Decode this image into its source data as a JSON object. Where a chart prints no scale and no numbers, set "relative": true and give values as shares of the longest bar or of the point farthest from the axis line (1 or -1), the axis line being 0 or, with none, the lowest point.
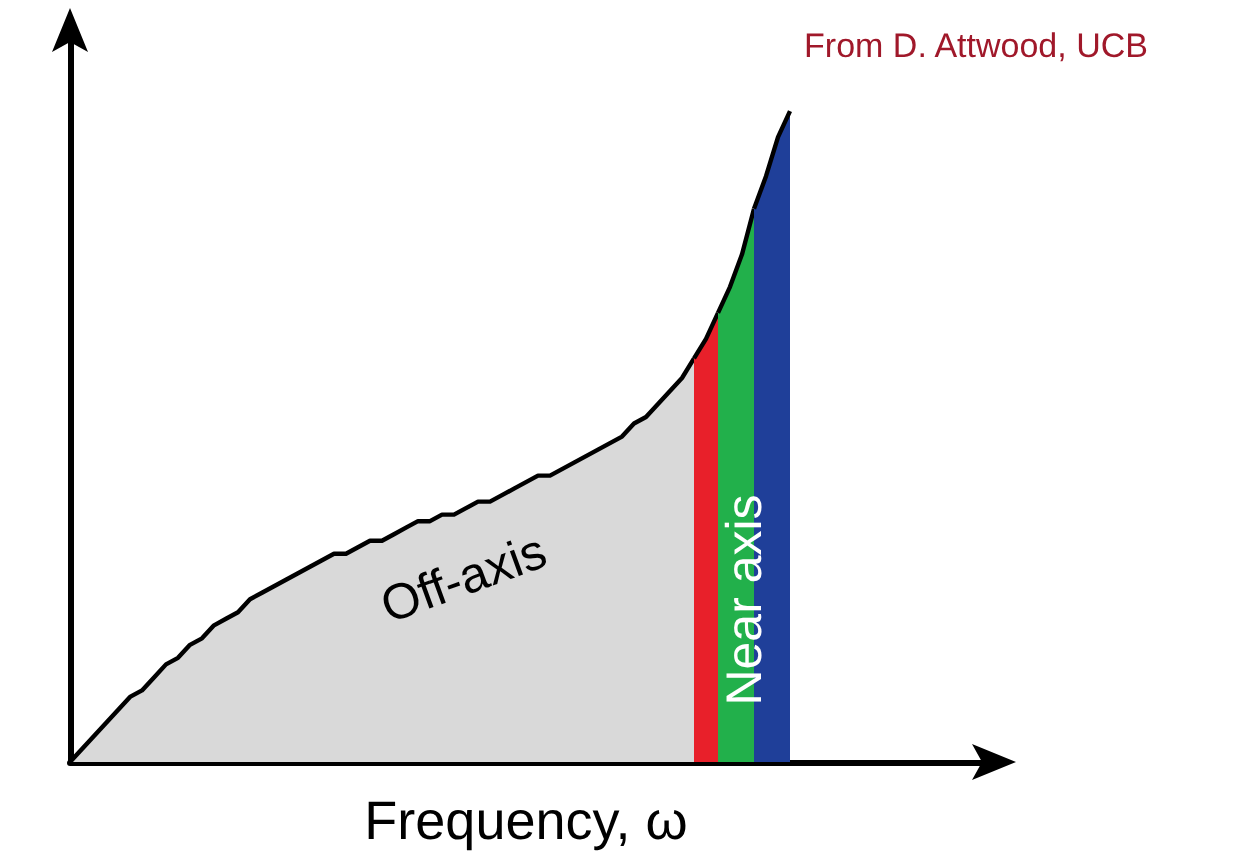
{
  "chart_data": {
    "type": "area",
    "relative": true,
    "xlabel": "Frequency, ω",
    "grid": false,
    "annotations": [
      "Off-axis",
      "Near axis",
      "From D. Attwood, UCB"
    ],
    "categories": [
      null,
      null,
      null,
      null,
      null,
      null,
      null,
      null,
      null,
      null,
      null,
      null,
      null,
      null,
      null,
      null,
      null,
      null,
      null,
      null,
      null,
      null,
      null,
      null,
      null,
      null,
      null,
      null,
      null,
      null,
      null,
      null,
      null,
      null,
      null,
      null,
      null,
      null,
      null,
      null,
      null,
      null,
      null,
      null,
      null,
      null,
      null,
      null,
      null,
      null,
      null,
      null,
      null,
      null,
      null,
      null,
      null,
      null,
      null,
      null,
      null,
      null,
      null,
      null,
      null,
      null,
      null,
      null,
      null,
      null,
      null,
      null,
      null,
      null,
      null,
      null,
      null
    ],
    "series": [
      {
        "color": "#d9d9d9",
        "values": [
          0,
          0.02,
          0.04,
          0.06,
          0.08,
          0.1,
          0.11,
          0.13,
          0.15,
          0.16,
          0.18,
          0.19,
          0.21,
          0.22,
          0.23,
          0.25,
          0.26,
          0.27,
          0.28,
          0.29,
          0.3,
          0.31,
          0.32,
          0.32,
          0.33,
          0.34,
          0.34,
          0.35,
          0.36,
          0.37,
          0.37,
          0.38,
          0.38,
          0.39,
          0.4,
          0.4,
          0.41,
          0.42,
          0.43,
          0.44,
          0.44,
          0.45,
          0.46,
          0.47,
          0.48,
          0.49,
          0.5,
          0.52,
          0.53,
          0.55,
          0.57,
          0.59,
          0.62,
          null,
          null,
          null,
          null,
          null,
          null,
          null,
          null,
          null,
          null,
          null,
          null,
          null,
          null,
          null,
          null,
          null,
          null,
          null,
          null,
          null,
          null,
          null,
          null
        ]
      },
      {
        "color": "#e8202a",
        "values": [
          null,
          null,
          null,
          null,
          null,
          null,
          null,
          null,
          null,
          null,
          null,
          null,
          null,
          null,
          null,
          null,
          null,
          null,
          null,
          null,
          null,
          null,
          null,
          null,
          null,
          null,
          null,
          null,
          null,
          null,
          null,
          null,
          null,
          null,
          null,
          null,
          null,
          null,
          null,
          null,
          null,
          null,
          null,
          null,
          null,
          null,
          null,
          null,
          null,
          null,
          null,
          null,
          0.62,
          0.65,
          0.69,
          null,
          null,
          null,
          null,
          null,
          null,
          null,
          null,
          null,
          null,
          null,
          null,
          null,
          null,
          null,
          null,
          null,
          null,
          null,
          null,
          null,
          null
        ]
      },
      {
        "color": "#22b04b",
        "values": [
          null,
          null,
          null,
          null,
          null,
          null,
          null,
          null,
          null,
          null,
          null,
          null,
          null,
          null,
          null,
          null,
          null,
          null,
          null,
          null,
          null,
          null,
          null,
          null,
          null,
          null,
          null,
          null,
          null,
          null,
          null,
          null,
          null,
          null,
          null,
          null,
          null,
          null,
          null,
          null,
          null,
          null,
          null,
          null,
          null,
          null,
          null,
          null,
          null,
          null,
          null,
          null,
          null,
          null,
          0.69,
          0.73,
          0.78,
          0.85,
          null,
          null,
          null,
          null,
          null,
          null,
          null,
          null,
          null,
          null,
          null,
          null,
          null,
          null,
          null,
          null,
          null,
          null,
          null
        ]
      },
      {
        "color": "#1f3f99",
        "values": [
          null,
          null,
          null,
          null,
          null,
          null,
          null,
          null,
          null,
          null,
          null,
          null,
          null,
          null,
          null,
          null,
          null,
          null,
          null,
          null,
          null,
          null,
          null,
          null,
          null,
          null,
          null,
          null,
          null,
          null,
          null,
          null,
          null,
          null,
          null,
          null,
          null,
          null,
          null,
          null,
          null,
          null,
          null,
          null,
          null,
          null,
          null,
          null,
          null,
          null,
          null,
          null,
          null,
          null,
          null,
          null,
          null,
          0.85,
          0.9,
          0.96,
          1,
          null,
          null,
          null,
          null,
          null,
          null,
          null,
          null,
          null,
          null,
          null,
          null,
          null,
          null,
          null,
          null
        ]
      }
    ]
  }
}
